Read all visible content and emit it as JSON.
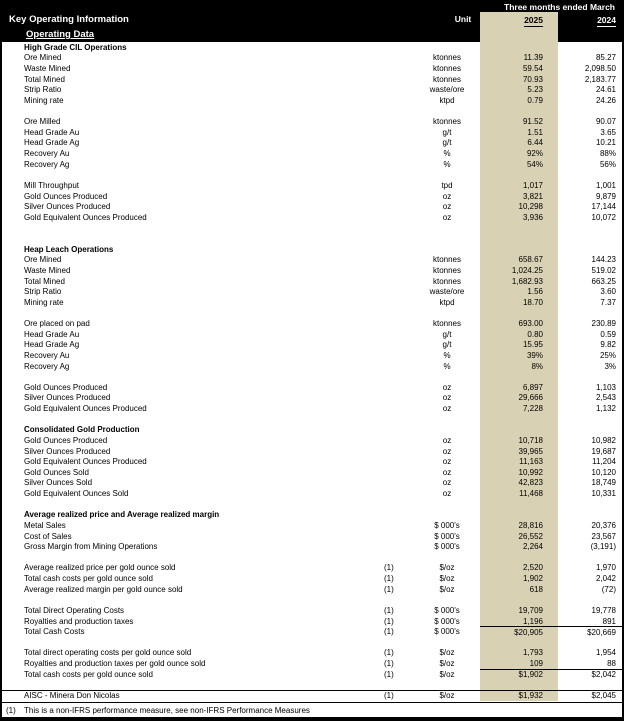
{
  "header": {
    "title": "Key Operating Information",
    "subtitle": "Operating Data",
    "unit_label": "Unit",
    "period_label": "Three months ended March",
    "col_2025": "2025",
    "col_2024": "2024"
  },
  "colors": {
    "highlight_column": "#d8d1b4",
    "header_background": "#000000"
  },
  "rows": [
    {
      "type": "section",
      "label": "High Grade CIL Operations"
    },
    {
      "type": "data",
      "label": "Ore Mined",
      "note": "",
      "unit": "ktonnes",
      "v2025": "11.39",
      "v2024": "85.27"
    },
    {
      "type": "data",
      "label": "Waste Mined",
      "note": "",
      "unit": "ktonnes",
      "v2025": "59.54",
      "v2024": "2,098.50"
    },
    {
      "type": "data",
      "label": "Total Mined",
      "note": "",
      "unit": "ktonnes",
      "v2025": "70.93",
      "v2024": "2,183.77"
    },
    {
      "type": "data",
      "label": "Strip Ratio",
      "note": "",
      "unit": "waste/ore",
      "v2025": "5.23",
      "v2024": "24.61"
    },
    {
      "type": "data",
      "label": "Mining rate",
      "note": "",
      "unit": "ktpd",
      "v2025": "0.79",
      "v2024": "24.26"
    },
    {
      "type": "blank"
    },
    {
      "type": "data",
      "label": "Ore Milled",
      "note": "",
      "unit": "ktonnes",
      "v2025": "91.52",
      "v2024": "90.07"
    },
    {
      "type": "data",
      "label": "Head Grade Au",
      "note": "",
      "unit": "g/t",
      "v2025": "1.51",
      "v2024": "3.65"
    },
    {
      "type": "data",
      "label": "Head Grade Ag",
      "note": "",
      "unit": "g/t",
      "v2025": "6.44",
      "v2024": "10.21"
    },
    {
      "type": "data",
      "label": "Recovery Au",
      "note": "",
      "unit": "%",
      "v2025": "92%",
      "v2024": "88%"
    },
    {
      "type": "data",
      "label": "Recovery Ag",
      "note": "",
      "unit": "%",
      "v2025": "54%",
      "v2024": "56%"
    },
    {
      "type": "blank"
    },
    {
      "type": "data",
      "label": "Mill Throughput",
      "note": "",
      "unit": "tpd",
      "v2025": "1,017",
      "v2024": "1,001"
    },
    {
      "type": "data",
      "label": "Gold Ounces Produced",
      "note": "",
      "unit": "oz",
      "v2025": "3,821",
      "v2024": "9,879"
    },
    {
      "type": "data",
      "label": "Silver Ounces Produced",
      "note": "",
      "unit": "oz",
      "v2025": "10,298",
      "v2024": "17,144"
    },
    {
      "type": "data",
      "label": "Gold Equivalent Ounces Produced",
      "note": "",
      "unit": "oz",
      "v2025": "3,936",
      "v2024": "10,072"
    },
    {
      "type": "blank"
    },
    {
      "type": "blank"
    },
    {
      "type": "section",
      "label": "Heap Leach Operations"
    },
    {
      "type": "data",
      "label": "Ore Mined",
      "note": "",
      "unit": "ktonnes",
      "v2025": "658.67",
      "v2024": "144.23"
    },
    {
      "type": "data",
      "label": "Waste Mined",
      "note": "",
      "unit": "ktonnes",
      "v2025": "1,024.25",
      "v2024": "519.02"
    },
    {
      "type": "data",
      "label": "Total Mined",
      "note": "",
      "unit": "ktonnes",
      "v2025": "1,682.93",
      "v2024": "663.25"
    },
    {
      "type": "data",
      "label": "Strip Ratio",
      "note": "",
      "unit": "waste/ore",
      "v2025": "1.56",
      "v2024": "3.60"
    },
    {
      "type": "data",
      "label": "Mining rate",
      "note": "",
      "unit": "ktpd",
      "v2025": "18.70",
      "v2024": "7.37"
    },
    {
      "type": "blank"
    },
    {
      "type": "data",
      "label": "Ore placed on pad",
      "note": "",
      "unit": "ktonnes",
      "v2025": "693.00",
      "v2024": "230.89"
    },
    {
      "type": "data",
      "label": "Head Grade Au",
      "note": "",
      "unit": "g/t",
      "v2025": "0.80",
      "v2024": "0.59"
    },
    {
      "type": "data",
      "label": "Head Grade Ag",
      "note": "",
      "unit": "g/t",
      "v2025": "15.95",
      "v2024": "9.82"
    },
    {
      "type": "data",
      "label": "Recovery Au",
      "note": "",
      "unit": "%",
      "v2025": "39%",
      "v2024": "25%"
    },
    {
      "type": "data",
      "label": "Recovery Ag",
      "note": "",
      "unit": "%",
      "v2025": "8%",
      "v2024": "3%"
    },
    {
      "type": "blank"
    },
    {
      "type": "data",
      "label": "Gold Ounces Produced",
      "note": "",
      "unit": "oz",
      "v2025": "6,897",
      "v2024": "1,103"
    },
    {
      "type": "data",
      "label": "Silver Ounces Produced",
      "note": "",
      "unit": "oz",
      "v2025": "29,666",
      "v2024": "2,543"
    },
    {
      "type": "data",
      "label": "Gold Equivalent Ounces Produced",
      "note": "",
      "unit": "oz",
      "v2025": "7,228",
      "v2024": "1,132"
    },
    {
      "type": "blank"
    },
    {
      "type": "section",
      "label": "Consolidated Gold Production"
    },
    {
      "type": "data",
      "label": "Gold Ounces Produced",
      "note": "",
      "unit": "oz",
      "v2025": "10,718",
      "v2024": "10,982"
    },
    {
      "type": "data",
      "label": "Silver Ounces Produced",
      "note": "",
      "unit": "oz",
      "v2025": "39,965",
      "v2024": "19,687"
    },
    {
      "type": "data",
      "label": "Gold Equivalent Ounces Produced",
      "note": "",
      "unit": "oz",
      "v2025": "11,163",
      "v2024": "11,204"
    },
    {
      "type": "data",
      "label": "Gold Ounces Sold",
      "note": "",
      "unit": "oz",
      "v2025": "10,992",
      "v2024": "10,120"
    },
    {
      "type": "data",
      "label": "Silver Ounces Sold",
      "note": "",
      "unit": "oz",
      "v2025": "42,823",
      "v2024": "18,749"
    },
    {
      "type": "data",
      "label": "Gold Equivalent Ounces Sold",
      "note": "",
      "unit": "oz",
      "v2025": "11,468",
      "v2024": "10,331"
    },
    {
      "type": "blank"
    },
    {
      "type": "section",
      "label": "Average realized price and Average realized margin"
    },
    {
      "type": "data",
      "label": "Metal Sales",
      "note": "",
      "unit": "$ 000's",
      "v2025": "28,816",
      "v2024": "20,376"
    },
    {
      "type": "data",
      "label": "Cost of Sales",
      "note": "",
      "unit": "$ 000's",
      "v2025": "26,552",
      "v2024": "23,567"
    },
    {
      "type": "data",
      "label": "Gross Margin from Mining Operations",
      "note": "",
      "unit": "$ 000's",
      "v2025": "2,264",
      "v2024": "(3,191)"
    },
    {
      "type": "blank"
    },
    {
      "type": "data",
      "label": "Average realized price per gold ounce sold",
      "note": "(1)",
      "unit": "$/oz",
      "v2025": "2,520",
      "v2024": "1,970"
    },
    {
      "type": "data",
      "label": "Total cash costs per gold ounce sold",
      "note": "(1)",
      "unit": "$/oz",
      "v2025": "1,902",
      "v2024": "2,042"
    },
    {
      "type": "data",
      "label": "Average realized margin per gold ounce sold",
      "note": "(1)",
      "unit": "$/oz",
      "v2025": "618",
      "v2024": "(72)"
    },
    {
      "type": "blank"
    },
    {
      "type": "data",
      "label": "Total Direct Operating Costs",
      "note": "(1)",
      "unit": "$ 000's",
      "v2025": "19,709",
      "v2024": "19,778"
    },
    {
      "type": "data",
      "label": "Royalties and production taxes",
      "note": "(1)",
      "unit": "$ 000's",
      "v2025": "1,196",
      "v2024": "891"
    },
    {
      "type": "data",
      "label": "Total Cash Costs",
      "note": "(1)",
      "unit": "$ 000's",
      "v2025": "$20,905",
      "v2024": "$20,669",
      "value_line": true
    },
    {
      "type": "blank"
    },
    {
      "type": "data",
      "label": "Total direct operating costs per gold ounce sold",
      "note": "(1)",
      "unit": "$/oz",
      "v2025": "1,793",
      "v2024": "1,954"
    },
    {
      "type": "data",
      "label": "Royalties and production taxes per gold ounce sold",
      "note": "(1)",
      "unit": "$/oz",
      "v2025": "109",
      "v2024": "88"
    },
    {
      "type": "data",
      "label": "Total cash costs per gold ounce sold",
      "note": "(1)",
      "unit": "$/oz",
      "v2025": "$1,902",
      "v2024": "$2,042",
      "value_line": true
    },
    {
      "type": "blank"
    },
    {
      "type": "data",
      "label": "AISC - Minera Don Nicolas",
      "note": "(1)",
      "unit": "$/oz",
      "v2025": "$1,932",
      "v2024": "$2,045",
      "line_above": true
    }
  ],
  "footnote": {
    "marker": "(1)",
    "text": "This is a non-IFRS performance measure, see non-IFRS Performance Measures"
  }
}
